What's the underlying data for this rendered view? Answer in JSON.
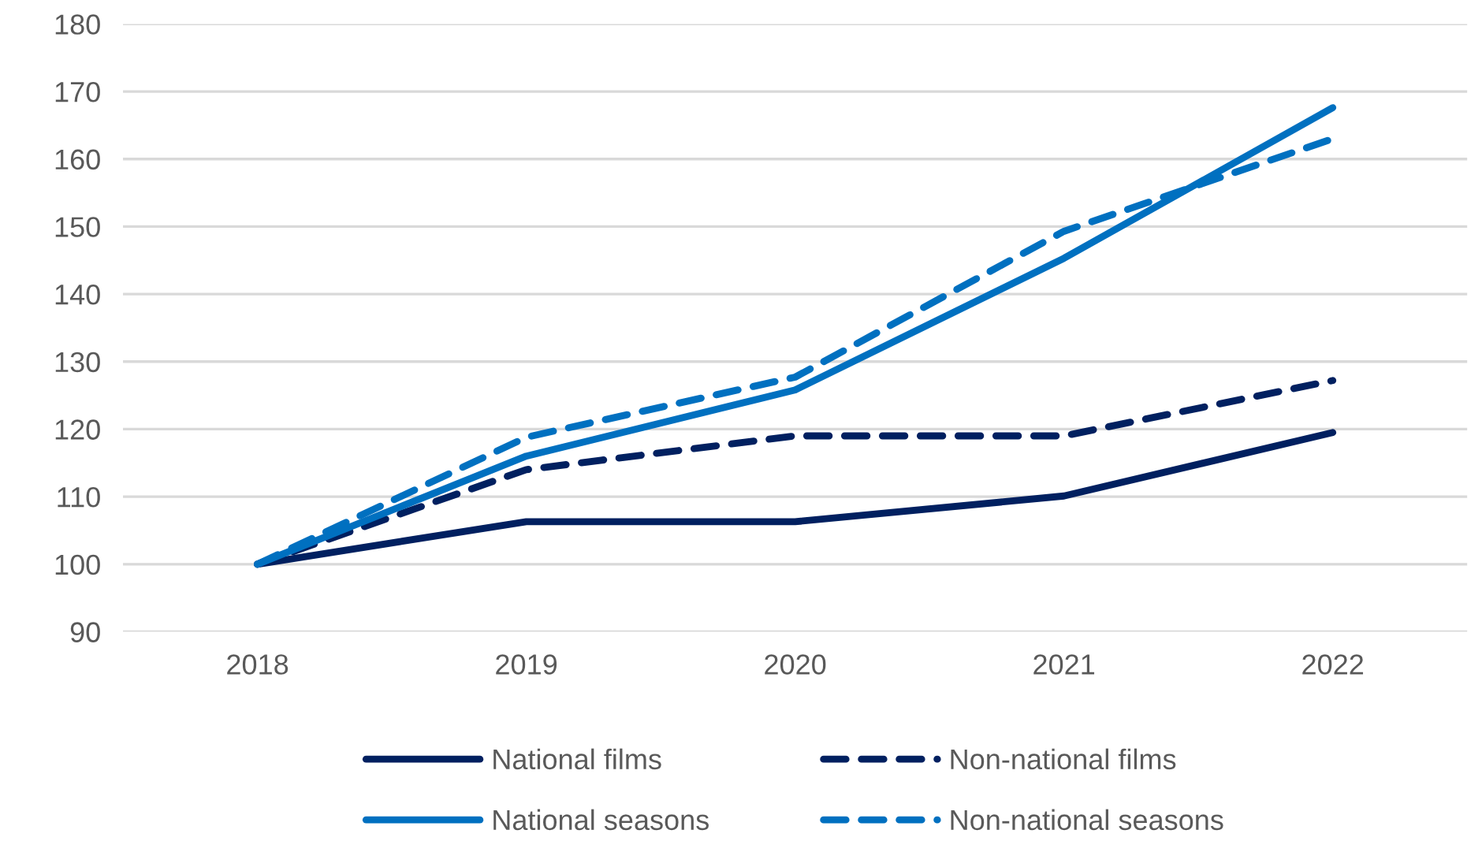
{
  "chart_data": {
    "type": "line",
    "categories": [
      "2018",
      "2019",
      "2020",
      "2021",
      "2022"
    ],
    "series": [
      {
        "name": "National films",
        "color": "#002060",
        "line_style": "solid",
        "values": [
          100,
          106.3,
          106.3,
          110.1,
          119.5
        ]
      },
      {
        "name": "Non-national films",
        "color": "#002060",
        "line_style": "dashed",
        "values": [
          100,
          114,
          119,
          119,
          127.2
        ]
      },
      {
        "name": "National seasons",
        "color": "#0070c0",
        "line_style": "solid",
        "values": [
          100,
          116,
          125.8,
          145.3,
          167.6
        ]
      },
      {
        "name": "Non-national seasons",
        "color": "#0070c0",
        "line_style": "dashed",
        "values": [
          100,
          118.8,
          127.7,
          149.3,
          163
        ]
      }
    ],
    "ylim": [
      90,
      180
    ],
    "yticks": [
      90,
      100,
      110,
      120,
      130,
      140,
      150,
      160,
      170,
      180
    ],
    "grid": "y",
    "legend": "bottom",
    "marker": "none"
  }
}
